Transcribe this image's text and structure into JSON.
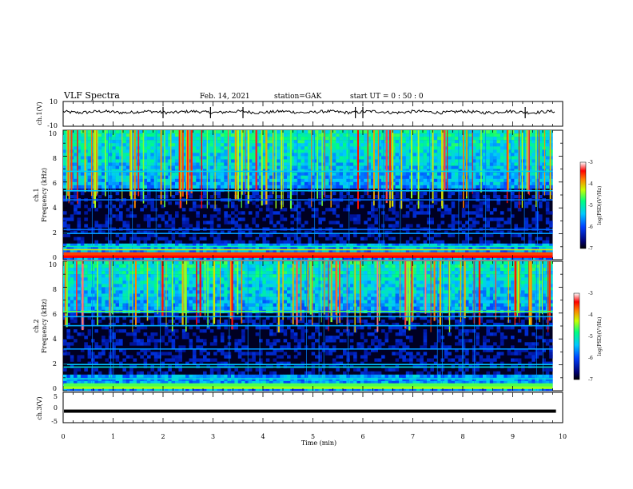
{
  "header": {
    "title": "VLF Spectra",
    "date": "Feb. 14, 2021",
    "station": "station=GAK",
    "start": "start  UT =   0  : 50 : 0"
  },
  "chart_data": [
    {
      "type": "line",
      "name": "ch1-waveform",
      "ylabel": "ch.1(V)",
      "ylim": [
        -10,
        10
      ],
      "yticks": [
        "10",
        "-10"
      ],
      "xlim": [
        0,
        10
      ],
      "level": 1.5,
      "spikes_x": [
        2.0,
        2.95,
        3.6,
        5.85,
        6.0,
        9.25
      ]
    },
    {
      "type": "heatmap",
      "name": "ch1-spectrogram",
      "ylabel_line1": "ch.1",
      "ylabel_line2": "Frequency (kHz)",
      "ylim": [
        0,
        10
      ],
      "yticks": [
        "0",
        "2",
        "4",
        "6",
        "8",
        "10"
      ],
      "xlim": [
        0,
        9.8
      ],
      "colorbar": {
        "label": "log(PSD)(V²/Hz)",
        "ticks": [
          "-3",
          "-4",
          "-5",
          "-6",
          "-7"
        ],
        "range": [
          -7,
          -3
        ]
      },
      "bands": [
        {
          "f": 0.3,
          "level": -3.4
        },
        {
          "f": 0.5,
          "level": -3.6
        },
        {
          "f": 0.75,
          "level": -4.2
        },
        {
          "f": 1.0,
          "level": -5.0
        },
        {
          "f": 2.0,
          "level": -5.6
        },
        {
          "f": 2.3,
          "level": -5.8
        },
        {
          "f": 4.6,
          "level": -5.8
        },
        {
          "f": 5.3,
          "level": -5.4
        },
        {
          "f": 6.8,
          "level": -5.3
        }
      ],
      "chorus_top": 10,
      "chorus_bottom": 5.4
    },
    {
      "type": "heatmap",
      "name": "ch2-spectrogram",
      "ylabel_line1": "ch.2",
      "ylabel_line2": "Frequency (kHz)",
      "ylim": [
        0,
        10
      ],
      "yticks": [
        "0",
        "2",
        "4",
        "6",
        "8",
        "10"
      ],
      "xlim": [
        0,
        9.8
      ],
      "colorbar": {
        "label": "log(PSD)(V²/Hz)",
        "ticks": [
          "-3",
          "-4",
          "-5",
          "-6",
          "-7"
        ],
        "range": [
          -7,
          -3
        ]
      },
      "bands": [
        {
          "f": 0.3,
          "level": -4.4
        },
        {
          "f": 0.5,
          "level": -4.6
        },
        {
          "f": 0.9,
          "level": -5.2
        },
        {
          "f": 1.8,
          "level": -5.2
        },
        {
          "f": 2.0,
          "level": -5.4
        },
        {
          "f": 3.2,
          "level": -5.6
        },
        {
          "f": 5.0,
          "level": -5.5
        },
        {
          "f": 5.7,
          "level": -5.5
        },
        {
          "f": 6.1,
          "level": -4.6
        }
      ],
      "chorus_top": 10,
      "chorus_bottom": 6.0
    },
    {
      "type": "line",
      "name": "ch3-waveform",
      "ylabel": "ch.3(V)",
      "ylim": [
        -5,
        5
      ],
      "yticks": [
        "5",
        "0",
        "-5"
      ],
      "xlim": [
        0,
        10
      ],
      "xlabel": "Time  (min)",
      "xticks": [
        "0",
        "1",
        "2",
        "3",
        "4",
        "5",
        "6",
        "7",
        "8",
        "9",
        "10"
      ],
      "level": -1.2
    }
  ]
}
